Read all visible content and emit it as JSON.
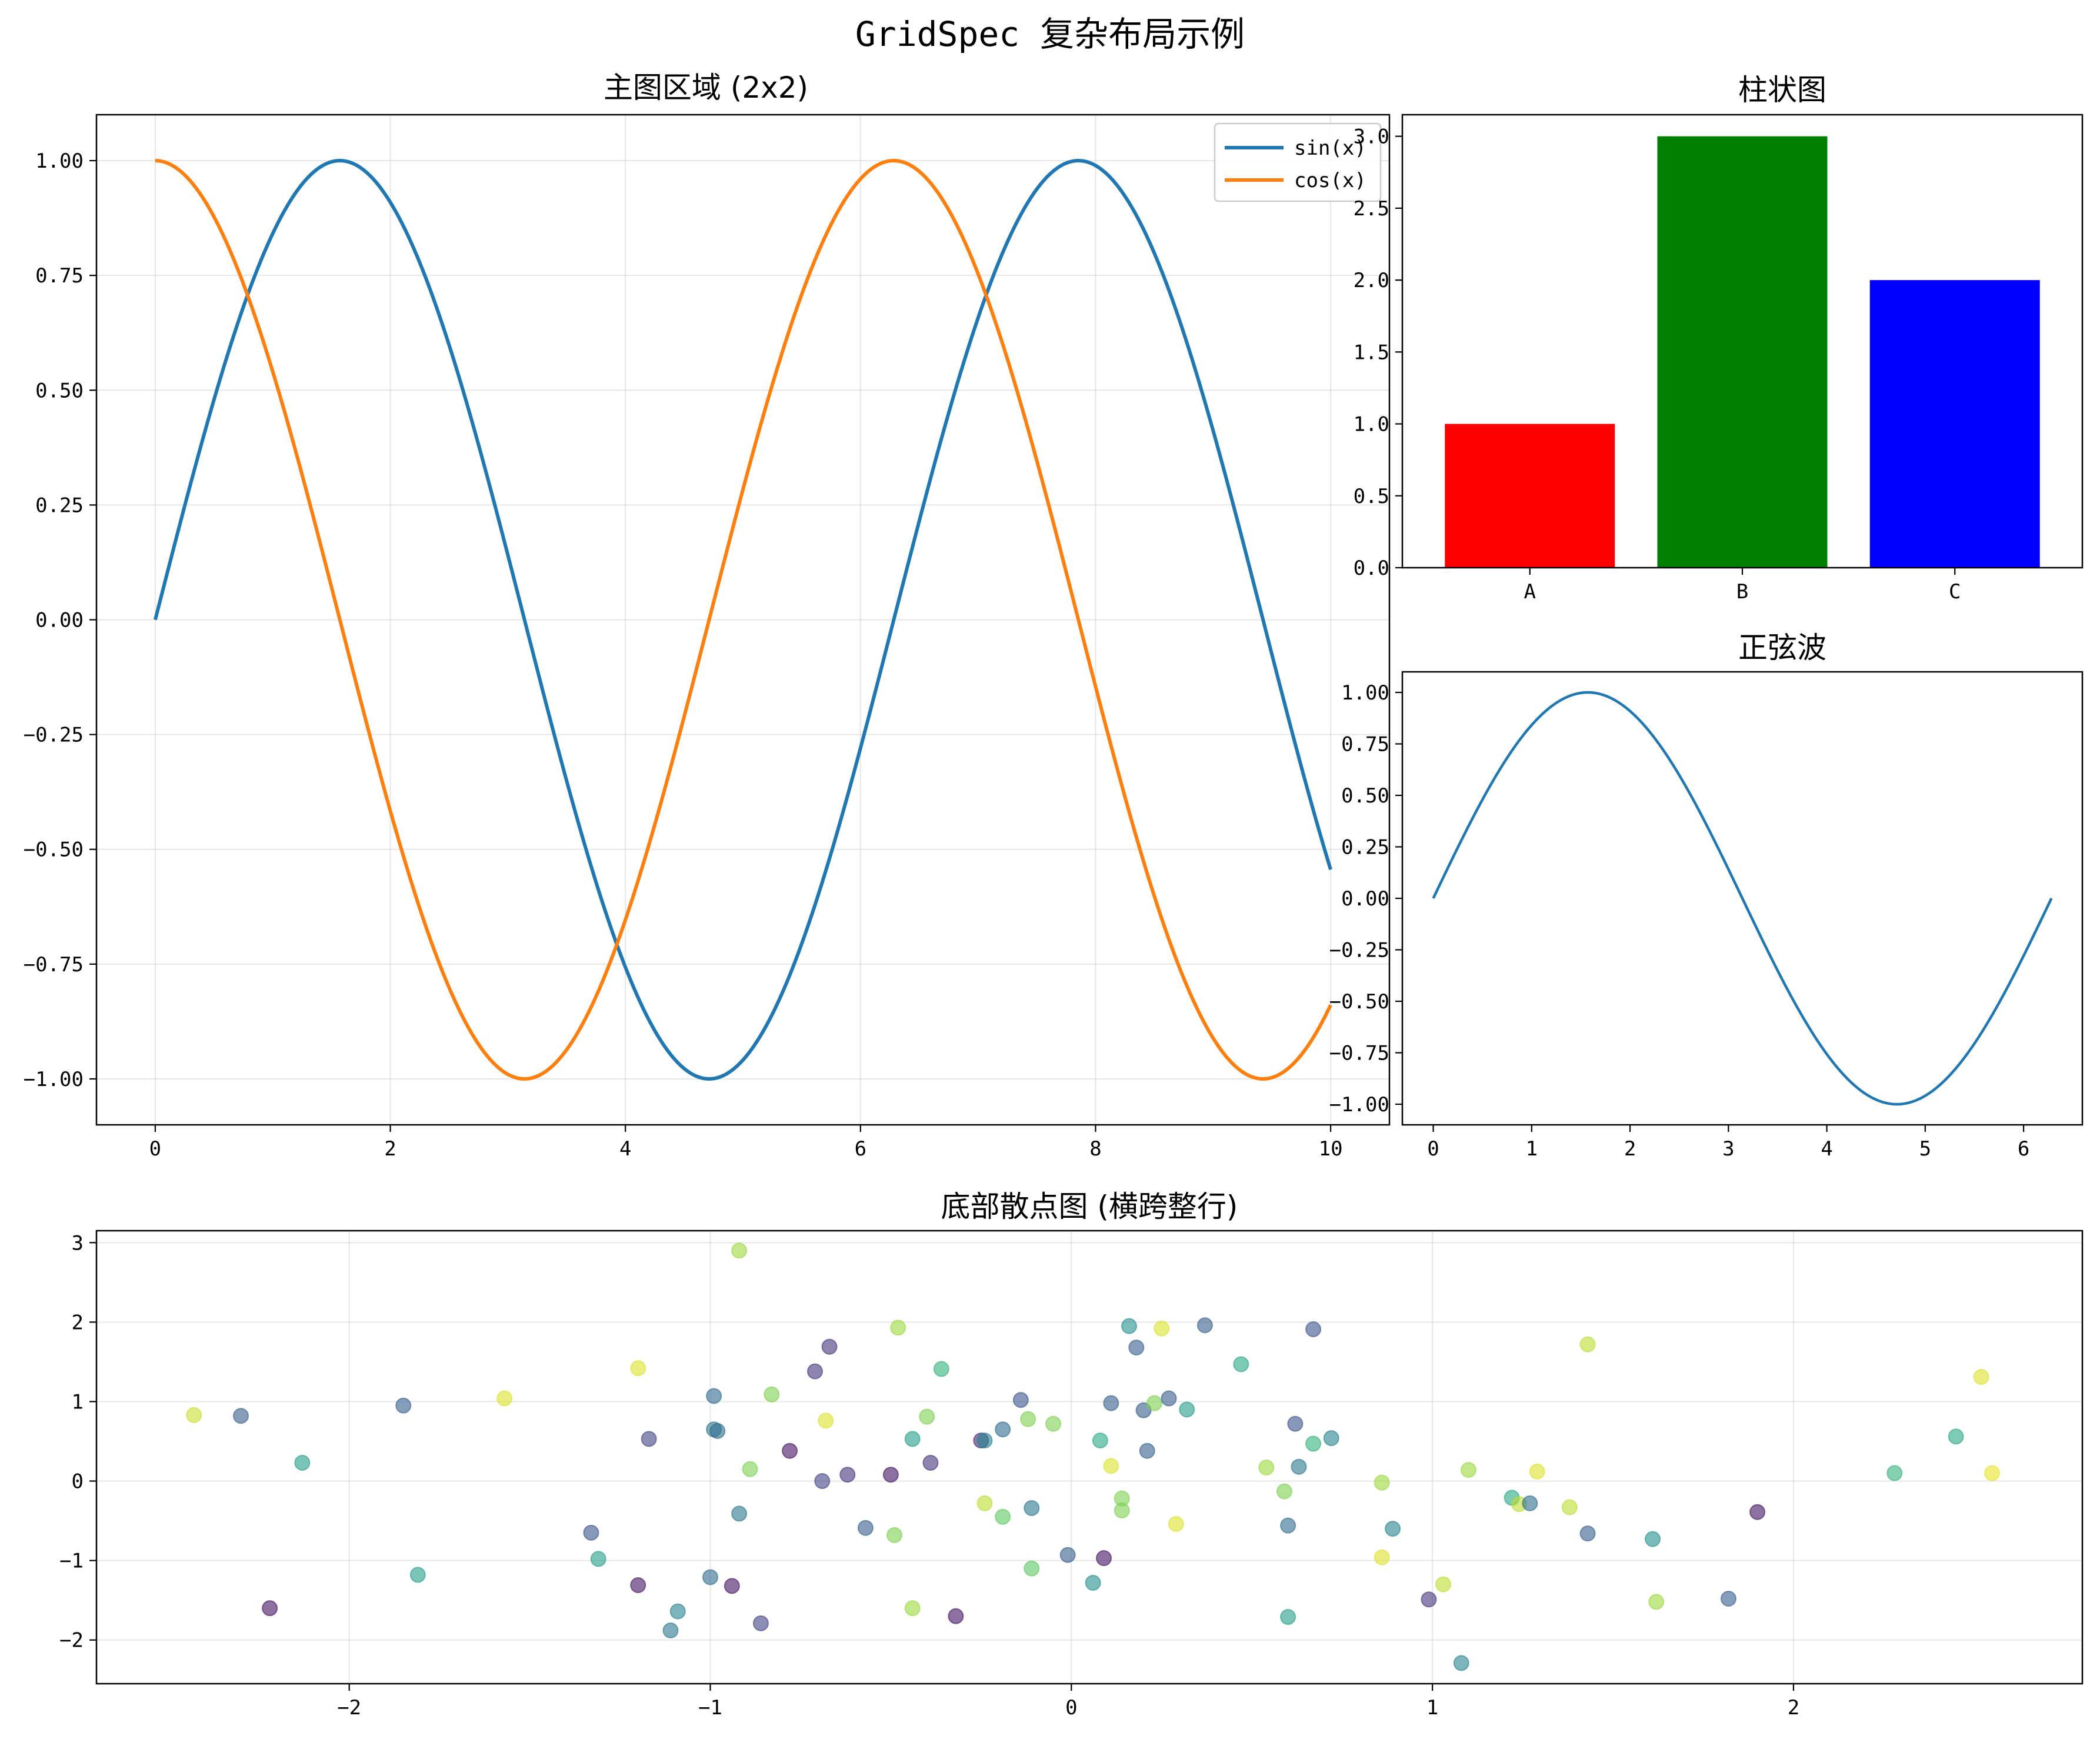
{
  "figure": {
    "suptitle": "GridSpec 复杂布局示例"
  },
  "chart_data": [
    {
      "id": "main",
      "type": "line",
      "title": "主图区域 (2x2)",
      "xlabel": "",
      "ylabel": "",
      "xlim": [
        -0.5,
        10.5
      ],
      "ylim": [
        -1.1,
        1.1
      ],
      "grid": true,
      "legend_position": "upper right",
      "x_ticks": [
        0,
        2,
        4,
        6,
        8,
        10
      ],
      "x_tick_labels": [
        "0",
        "2",
        "4",
        "6",
        "8",
        "10"
      ],
      "y_ticks": [
        1.0,
        0.75,
        0.5,
        0.25,
        0.0,
        -0.25,
        -0.5,
        -0.75,
        -1.0
      ],
      "y_tick_labels": [
        "1.00",
        "0.75",
        "0.50",
        "0.25",
        "0.00",
        "−0.25",
        "−0.50",
        "−0.75",
        "−1.00"
      ],
      "x_range": [
        0,
        10
      ],
      "series": [
        {
          "name": "sin(x)",
          "function": "sin",
          "color": "#1f77b4"
        },
        {
          "name": "cos(x)",
          "function": "cos",
          "color": "#ff7f0e"
        }
      ]
    },
    {
      "id": "bar",
      "type": "bar",
      "title": "柱状图",
      "categories": [
        "A",
        "B",
        "C"
      ],
      "values": [
        1,
        3,
        2
      ],
      "colors": [
        "#ff0000",
        "#008000",
        "#0000ff"
      ],
      "ylim": [
        0,
        3.15
      ],
      "y_ticks": [
        0.0,
        0.5,
        1.0,
        1.5,
        2.0,
        2.5,
        3.0
      ],
      "y_tick_labels": [
        "0.0",
        "0.5",
        "1.0",
        "1.5",
        "2.0",
        "2.5",
        "3.0"
      ],
      "grid": false
    },
    {
      "id": "sine",
      "type": "line",
      "title": "正弦波",
      "xlim": [
        -0.3142,
        6.5974
      ],
      "ylim": [
        -1.1,
        1.1
      ],
      "x_range": [
        0,
        6.2832
      ],
      "x_ticks": [
        0,
        1,
        2,
        3,
        4,
        5,
        6
      ],
      "x_tick_labels": [
        "0",
        "1",
        "2",
        "3",
        "4",
        "5",
        "6"
      ],
      "y_ticks": [
        1.0,
        0.75,
        0.5,
        0.25,
        0.0,
        -0.25,
        -0.5,
        -0.75,
        -1.0
      ],
      "y_tick_labels": [
        "1.00",
        "0.75",
        "0.50",
        "0.25",
        "0.00",
        "−0.25",
        "−0.50",
        "−0.75",
        "−1.00"
      ],
      "series": [
        {
          "function": "sin",
          "color": "#1f77b4"
        }
      ],
      "grid": false
    },
    {
      "id": "scatter",
      "type": "scatter",
      "title": "底部散点图 (横跨整行)",
      "xlim": [
        -2.7,
        2.8
      ],
      "ylim": [
        -2.55,
        3.15
      ],
      "grid": true,
      "colormap": "viridis",
      "alpha": 0.6,
      "x_ticks": [
        -2,
        -1,
        0,
        1,
        2
      ],
      "x_tick_labels": [
        "−2",
        "−1",
        "0",
        "1",
        "2"
      ],
      "y_ticks": [
        3,
        2,
        1,
        0,
        -1,
        -2
      ],
      "y_tick_labels": [
        "3",
        "2",
        "1",
        "0",
        "−1",
        "−2"
      ],
      "points": [
        {
          "x": -2.43,
          "y": 0.83,
          "c": 0.92
        },
        {
          "x": -2.3,
          "y": 0.82,
          "c": 0.3
        },
        {
          "x": -2.13,
          "y": 0.23,
          "c": 0.55
        },
        {
          "x": -2.22,
          "y": -1.6,
          "c": 0.05
        },
        {
          "x": -1.85,
          "y": 0.95,
          "c": 0.3
        },
        {
          "x": -1.81,
          "y": -1.18,
          "c": 0.55
        },
        {
          "x": -1.57,
          "y": 1.04,
          "c": 0.95
        },
        {
          "x": -1.33,
          "y": -0.65,
          "c": 0.25
        },
        {
          "x": -1.31,
          "y": -0.98,
          "c": 0.55
        },
        {
          "x": -1.2,
          "y": 1.42,
          "c": 0.95
        },
        {
          "x": -1.2,
          "y": -1.31,
          "c": 0.05
        },
        {
          "x": -1.17,
          "y": 0.53,
          "c": 0.2
        },
        {
          "x": -1.11,
          "y": -1.88,
          "c": 0.4
        },
        {
          "x": -1.09,
          "y": -1.64,
          "c": 0.45
        },
        {
          "x": -1.0,
          "y": -1.21,
          "c": 0.35
        },
        {
          "x": -0.99,
          "y": 1.07,
          "c": 0.35
        },
        {
          "x": -0.99,
          "y": 0.65,
          "c": 0.4
        },
        {
          "x": -0.98,
          "y": 0.63,
          "c": 0.35
        },
        {
          "x": -0.94,
          "y": -1.32,
          "c": 0.05
        },
        {
          "x": -0.92,
          "y": -0.41,
          "c": 0.4
        },
        {
          "x": -0.92,
          "y": 2.9,
          "c": 0.85
        },
        {
          "x": -0.89,
          "y": 0.15,
          "c": 0.8
        },
        {
          "x": -0.86,
          "y": -1.79,
          "c": 0.2
        },
        {
          "x": -0.83,
          "y": 1.09,
          "c": 0.8
        },
        {
          "x": -0.78,
          "y": 0.38,
          "c": 0.05
        },
        {
          "x": -0.71,
          "y": 1.38,
          "c": 0.15
        },
        {
          "x": -0.69,
          "y": 0.0,
          "c": 0.2
        },
        {
          "x": -0.68,
          "y": 0.76,
          "c": 0.95
        },
        {
          "x": -0.67,
          "y": 1.69,
          "c": 0.15
        },
        {
          "x": -0.62,
          "y": 0.08,
          "c": 0.15
        },
        {
          "x": -0.57,
          "y": -0.59,
          "c": 0.3
        },
        {
          "x": -0.5,
          "y": 0.08,
          "c": 0.05
        },
        {
          "x": -0.49,
          "y": -0.68,
          "c": 0.8
        },
        {
          "x": -0.48,
          "y": 1.93,
          "c": 0.85
        },
        {
          "x": -0.44,
          "y": 0.53,
          "c": 0.55
        },
        {
          "x": -0.44,
          "y": -1.6,
          "c": 0.85
        },
        {
          "x": -0.4,
          "y": 0.81,
          "c": 0.8
        },
        {
          "x": -0.39,
          "y": 0.23,
          "c": 0.15
        },
        {
          "x": -0.36,
          "y": 1.41,
          "c": 0.65
        },
        {
          "x": -0.32,
          "y": -1.7,
          "c": 0.05
        },
        {
          "x": -0.25,
          "y": 0.51,
          "c": 0.1
        },
        {
          "x": -0.24,
          "y": 0.51,
          "c": 0.45
        },
        {
          "x": -0.24,
          "y": -0.28,
          "c": 0.9
        },
        {
          "x": -0.19,
          "y": 0.65,
          "c": 0.35
        },
        {
          "x": -0.19,
          "y": -0.45,
          "c": 0.75
        },
        {
          "x": -0.14,
          "y": 1.02,
          "c": 0.25
        },
        {
          "x": -0.12,
          "y": 0.78,
          "c": 0.8
        },
        {
          "x": -0.11,
          "y": -0.34,
          "c": 0.4
        },
        {
          "x": -0.11,
          "y": -1.1,
          "c": 0.75
        },
        {
          "x": -0.05,
          "y": 0.72,
          "c": 0.8
        },
        {
          "x": -0.01,
          "y": -0.93,
          "c": 0.3
        },
        {
          "x": 0.06,
          "y": -1.28,
          "c": 0.5
        },
        {
          "x": 0.08,
          "y": 0.51,
          "c": 0.6
        },
        {
          "x": 0.09,
          "y": -0.97,
          "c": 0.05
        },
        {
          "x": 0.11,
          "y": 0.98,
          "c": 0.3
        },
        {
          "x": 0.11,
          "y": 0.19,
          "c": 0.95
        },
        {
          "x": 0.14,
          "y": -0.22,
          "c": 0.8
        },
        {
          "x": 0.14,
          "y": -0.37,
          "c": 0.8
        },
        {
          "x": 0.16,
          "y": 1.95,
          "c": 0.5
        },
        {
          "x": 0.18,
          "y": 1.68,
          "c": 0.3
        },
        {
          "x": 0.2,
          "y": 0.89,
          "c": 0.3
        },
        {
          "x": 0.21,
          "y": 0.38,
          "c": 0.3
        },
        {
          "x": 0.23,
          "y": 0.98,
          "c": 0.8
        },
        {
          "x": 0.25,
          "y": 1.92,
          "c": 0.95
        },
        {
          "x": 0.27,
          "y": 1.04,
          "c": 0.3
        },
        {
          "x": 0.29,
          "y": -0.54,
          "c": 0.95
        },
        {
          "x": 0.32,
          "y": 0.9,
          "c": 0.55
        },
        {
          "x": 0.37,
          "y": 1.96,
          "c": 0.3
        },
        {
          "x": 0.47,
          "y": 1.47,
          "c": 0.6
        },
        {
          "x": 0.54,
          "y": 0.17,
          "c": 0.85
        },
        {
          "x": 0.59,
          "y": -0.13,
          "c": 0.8
        },
        {
          "x": 0.6,
          "y": -0.56,
          "c": 0.35
        },
        {
          "x": 0.6,
          "y": -1.71,
          "c": 0.55
        },
        {
          "x": 0.62,
          "y": 0.72,
          "c": 0.25
        },
        {
          "x": 0.63,
          "y": 0.18,
          "c": 0.4
        },
        {
          "x": 0.67,
          "y": 0.47,
          "c": 0.65
        },
        {
          "x": 0.67,
          "y": 1.91,
          "c": 0.25
        },
        {
          "x": 0.72,
          "y": 0.54,
          "c": 0.45
        },
        {
          "x": 0.86,
          "y": -0.02,
          "c": 0.85
        },
        {
          "x": 0.86,
          "y": -0.96,
          "c": 0.95
        },
        {
          "x": 0.89,
          "y": -0.6,
          "c": 0.45
        },
        {
          "x": 0.99,
          "y": -1.49,
          "c": 0.15
        },
        {
          "x": 1.03,
          "y": -1.3,
          "c": 0.9
        },
        {
          "x": 1.08,
          "y": -2.29,
          "c": 0.45
        },
        {
          "x": 1.1,
          "y": 0.14,
          "c": 0.85
        },
        {
          "x": 1.22,
          "y": -0.21,
          "c": 0.6
        },
        {
          "x": 1.24,
          "y": -0.29,
          "c": 0.9
        },
        {
          "x": 1.27,
          "y": -0.28,
          "c": 0.35
        },
        {
          "x": 1.29,
          "y": 0.12,
          "c": 0.95
        },
        {
          "x": 1.38,
          "y": -0.33,
          "c": 0.9
        },
        {
          "x": 1.43,
          "y": 1.72,
          "c": 0.9
        },
        {
          "x": 1.43,
          "y": -0.66,
          "c": 0.3
        },
        {
          "x": 1.61,
          "y": -0.73,
          "c": 0.5
        },
        {
          "x": 1.62,
          "y": -1.52,
          "c": 0.85
        },
        {
          "x": 1.82,
          "y": -1.48,
          "c": 0.3
        },
        {
          "x": 1.9,
          "y": -0.39,
          "c": 0.05
        },
        {
          "x": 2.28,
          "y": 0.1,
          "c": 0.65
        },
        {
          "x": 2.45,
          "y": 0.56,
          "c": 0.6
        },
        {
          "x": 2.52,
          "y": 1.31,
          "c": 0.95
        },
        {
          "x": 2.55,
          "y": 0.1,
          "c": 0.97
        }
      ]
    }
  ]
}
